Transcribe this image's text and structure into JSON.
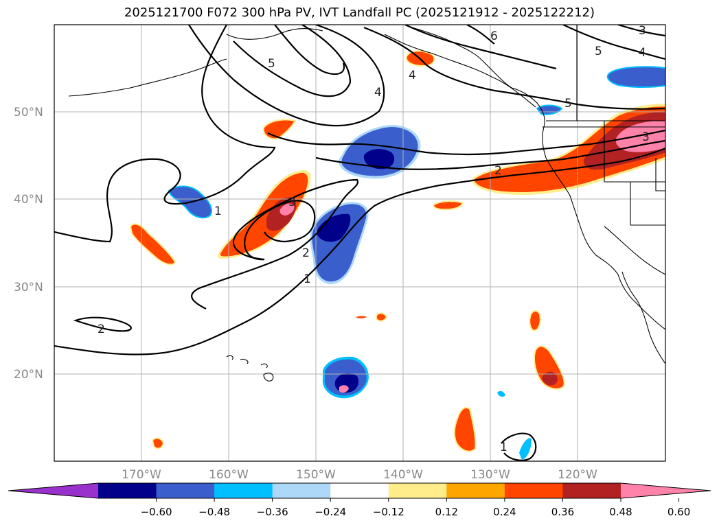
{
  "title": "2025121700 F072 300 hPa PV, IVT Landfall PC (2025121912 - 2025122212)",
  "map": {
    "lat_ticks": [
      {
        "label": "50°N",
        "lat": 50
      },
      {
        "label": "40°N",
        "lat": 40
      },
      {
        "label": "30°N",
        "lat": 30
      },
      {
        "label": "20°N",
        "lat": 20
      }
    ],
    "lon_ticks": [
      {
        "label": "170°W",
        "lon": -170
      },
      {
        "label": "160°W",
        "lon": -160
      },
      {
        "label": "150°W",
        "lon": -150
      },
      {
        "label": "140°W",
        "lon": -140
      },
      {
        "label": "130°W",
        "lon": -130
      },
      {
        "label": "120°W",
        "lon": -120
      }
    ],
    "contour_labels": [
      "1",
      "2",
      "3",
      "4",
      "5",
      "6"
    ]
  },
  "colorbar": {
    "ticks": [
      "−0.60",
      "−0.48",
      "−0.36",
      "−0.24",
      "−0.12",
      "0.12",
      "0.24",
      "0.36",
      "0.48",
      "0.60"
    ],
    "colors": [
      "#9932cc",
      "#00008b",
      "#3a5fcd",
      "#00bfff",
      "#add8f8",
      "#ffffff",
      "#ffec8b",
      "#ffa500",
      "#ff4500",
      "#b22222",
      "#ff82ab"
    ]
  }
}
